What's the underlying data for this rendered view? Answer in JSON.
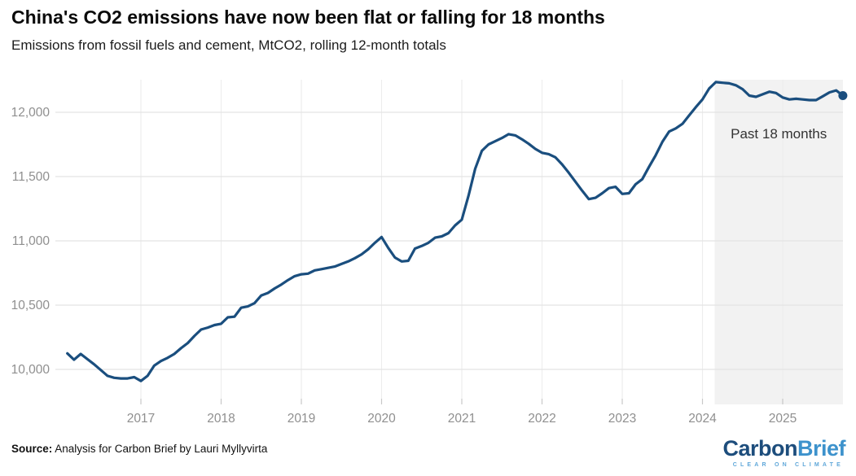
{
  "header": {
    "title": "China's CO2 emissions have now been flat or falling for 18 months",
    "subtitle": "Emissions from fossil fuels and cement, MtCO2, rolling 12-month totals"
  },
  "footer": {
    "source_label": "Source:",
    "source_text": " Analysis for Carbon Brief by Lauri Myllyvirta",
    "logo_part1": "Carbon",
    "logo_part2": "Brief",
    "logo_tagline": "CLEAR ON CLIMATE"
  },
  "colors": {
    "line": "#1a4e7e",
    "marker": "#1a4e7e",
    "shade": "#f2f2f2",
    "grid_horizontal": "#e4e4e4",
    "grid_vertical": "#ededed",
    "tick": "#c8c8c8",
    "axis_label": "#8f8f8f",
    "annotation": "#333333"
  },
  "chart_data": {
    "type": "line",
    "title": "China's CO2 emissions have now been flat or falling for 18 months",
    "subtitle": "Emissions from fossil fuels and cement, MtCO2, rolling 12-month totals",
    "unit": "MtCO2",
    "grid": true,
    "legend": "none",
    "ylim": [
      9720,
      12260
    ],
    "y_ticks": [
      {
        "value": 10000,
        "label": "10,000"
      },
      {
        "value": 10500,
        "label": "10,500"
      },
      {
        "value": 11000,
        "label": "11,000"
      },
      {
        "value": 11500,
        "label": "11,500"
      },
      {
        "value": 12000,
        "label": "12,000"
      }
    ],
    "x_ticks": [
      "2017",
      "2018",
      "2019",
      "2020",
      "2021",
      "2022",
      "2023",
      "2024",
      "2025"
    ],
    "annotation": {
      "label": "Past 18 months",
      "start_month": "2024-03"
    },
    "series": [
      {
        "name": "China CO2 emissions, rolling 12-month total",
        "points": [
          [
            "2016-02",
            10125
          ],
          [
            "2016-03",
            10075
          ],
          [
            "2016-04",
            10120
          ],
          [
            "2016-05",
            10080
          ],
          [
            "2016-06",
            10040
          ],
          [
            "2016-07",
            9995
          ],
          [
            "2016-08",
            9950
          ],
          [
            "2016-09",
            9935
          ],
          [
            "2016-10",
            9930
          ],
          [
            "2016-11",
            9930
          ],
          [
            "2016-12",
            9940
          ],
          [
            "2017-01",
            9910
          ],
          [
            "2017-02",
            9950
          ],
          [
            "2017-03",
            10030
          ],
          [
            "2017-04",
            10065
          ],
          [
            "2017-05",
            10090
          ],
          [
            "2017-06",
            10120
          ],
          [
            "2017-07",
            10165
          ],
          [
            "2017-08",
            10205
          ],
          [
            "2017-09",
            10260
          ],
          [
            "2017-10",
            10310
          ],
          [
            "2017-11",
            10325
          ],
          [
            "2017-12",
            10345
          ],
          [
            "2018-01",
            10355
          ],
          [
            "2018-02",
            10405
          ],
          [
            "2018-03",
            10410
          ],
          [
            "2018-04",
            10480
          ],
          [
            "2018-05",
            10490
          ],
          [
            "2018-06",
            10515
          ],
          [
            "2018-07",
            10575
          ],
          [
            "2018-08",
            10595
          ],
          [
            "2018-09",
            10630
          ],
          [
            "2018-10",
            10660
          ],
          [
            "2018-11",
            10695
          ],
          [
            "2018-12",
            10725
          ],
          [
            "2019-01",
            10740
          ],
          [
            "2019-02",
            10745
          ],
          [
            "2019-03",
            10770
          ],
          [
            "2019-04",
            10780
          ],
          [
            "2019-05",
            10790
          ],
          [
            "2019-06",
            10800
          ],
          [
            "2019-07",
            10820
          ],
          [
            "2019-08",
            10840
          ],
          [
            "2019-09",
            10865
          ],
          [
            "2019-10",
            10895
          ],
          [
            "2019-11",
            10935
          ],
          [
            "2019-12",
            10985
          ],
          [
            "2020-01",
            11030
          ],
          [
            "2020-02",
            10945
          ],
          [
            "2020-03",
            10870
          ],
          [
            "2020-04",
            10840
          ],
          [
            "2020-05",
            10845
          ],
          [
            "2020-06",
            10940
          ],
          [
            "2020-07",
            10960
          ],
          [
            "2020-08",
            10985
          ],
          [
            "2020-09",
            11025
          ],
          [
            "2020-10",
            11035
          ],
          [
            "2020-11",
            11060
          ],
          [
            "2020-12",
            11120
          ],
          [
            "2021-01",
            11165
          ],
          [
            "2021-02",
            11350
          ],
          [
            "2021-03",
            11560
          ],
          [
            "2021-04",
            11700
          ],
          [
            "2021-05",
            11750
          ],
          [
            "2021-06",
            11775
          ],
          [
            "2021-07",
            11800
          ],
          [
            "2021-08",
            11830
          ],
          [
            "2021-09",
            11820
          ],
          [
            "2021-10",
            11790
          ],
          [
            "2021-11",
            11755
          ],
          [
            "2021-12",
            11715
          ],
          [
            "2022-01",
            11685
          ],
          [
            "2022-02",
            11675
          ],
          [
            "2022-03",
            11650
          ],
          [
            "2022-04",
            11595
          ],
          [
            "2022-05",
            11530
          ],
          [
            "2022-06",
            11460
          ],
          [
            "2022-07",
            11390
          ],
          [
            "2022-08",
            11325
          ],
          [
            "2022-09",
            11335
          ],
          [
            "2022-10",
            11370
          ],
          [
            "2022-11",
            11410
          ],
          [
            "2022-12",
            11420
          ],
          [
            "2023-01",
            11365
          ],
          [
            "2023-02",
            11370
          ],
          [
            "2023-03",
            11440
          ],
          [
            "2023-04",
            11480
          ],
          [
            "2023-05",
            11575
          ],
          [
            "2023-06",
            11665
          ],
          [
            "2023-07",
            11770
          ],
          [
            "2023-08",
            11850
          ],
          [
            "2023-09",
            11875
          ],
          [
            "2023-10",
            11910
          ],
          [
            "2023-11",
            11975
          ],
          [
            "2023-12",
            12040
          ],
          [
            "2024-01",
            12100
          ],
          [
            "2024-02",
            12185
          ],
          [
            "2024-03",
            12235
          ],
          [
            "2024-04",
            12230
          ],
          [
            "2024-05",
            12225
          ],
          [
            "2024-06",
            12210
          ],
          [
            "2024-07",
            12180
          ],
          [
            "2024-08",
            12130
          ],
          [
            "2024-09",
            12120
          ],
          [
            "2024-10",
            12140
          ],
          [
            "2024-11",
            12160
          ],
          [
            "2024-12",
            12150
          ],
          [
            "2025-01",
            12115
          ],
          [
            "2025-02",
            12100
          ],
          [
            "2025-03",
            12105
          ],
          [
            "2025-04",
            12100
          ],
          [
            "2025-05",
            12095
          ],
          [
            "2025-06",
            12095
          ],
          [
            "2025-07",
            12125
          ],
          [
            "2025-08",
            12155
          ],
          [
            "2025-09",
            12170
          ],
          [
            "2025-10",
            12130
          ]
        ]
      }
    ]
  }
}
